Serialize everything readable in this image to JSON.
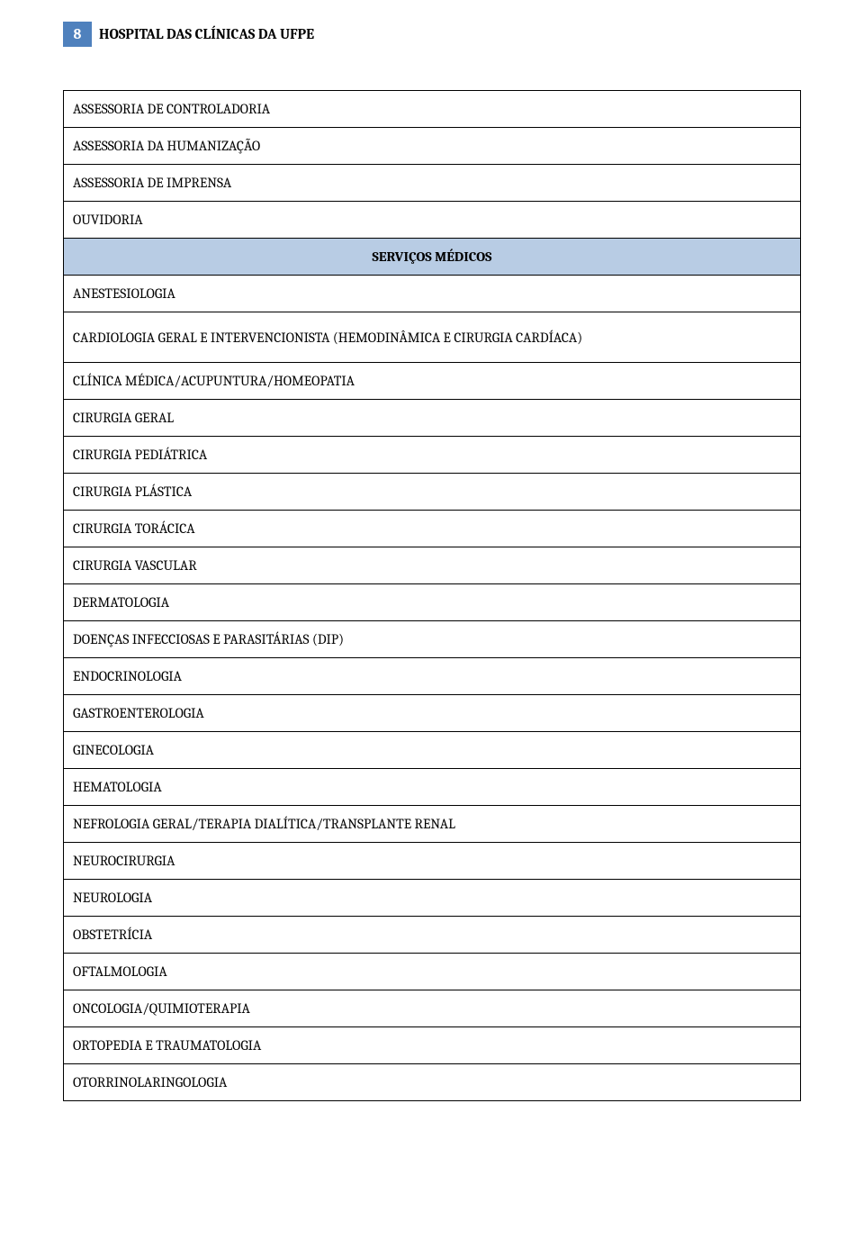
{
  "page": {
    "number": "8",
    "title": "HOSPITAL DAS CLÍNICAS DA UFPE"
  },
  "colors": {
    "page_num_bg": "#4f81bd",
    "page_num_fg": "#ffffff",
    "section_header_bg": "#b8cce4",
    "border": "#000000",
    "text": "#000000",
    "background": "#ffffff"
  },
  "rows_top": [
    "ASSESSORIA DE CONTROLADORIA",
    "ASSESSORIA DA HUMANIZAÇÃO",
    "ASSESSORIA DE IMPRENSA",
    "OUVIDORIA"
  ],
  "section_header": "SERVIÇOS MÉDICOS",
  "rows_bottom": [
    "ANESTESIOLOGIA",
    "CARDIOLOGIA GERAL E INTERVENCIONISTA (HEMODINÂMICA E CIRURGIA CARDÍACA)",
    "CLÍNICA MÉDICA/ACUPUNTURA/HOMEOPATIA",
    "CIRURGIA GERAL",
    "CIRURGIA PEDIÁTRICA",
    "CIRURGIA PLÁSTICA",
    "CIRURGIA TORÁCICA",
    "CIRURGIA VASCULAR",
    "DERMATOLOGIA",
    "DOENÇAS INFECCIOSAS E PARASITÁRIAS (DIP)",
    "ENDOCRINOLOGIA",
    "GASTROENTEROLOGIA",
    "GINECOLOGIA",
    "HEMATOLOGIA",
    "NEFROLOGIA GERAL/TERAPIA DIALÍTICA/TRANSPLANTE RENAL",
    "NEUROCIRURGIA",
    "NEUROLOGIA",
    "OBSTETRÍCIA",
    "OFTALMOLOGIA",
    "ONCOLOGIA/QUIMIOTERAPIA",
    "ORTOPEDIA E TRAUMATOLOGIA",
    "OTORRINOLARINGOLOGIA"
  ]
}
